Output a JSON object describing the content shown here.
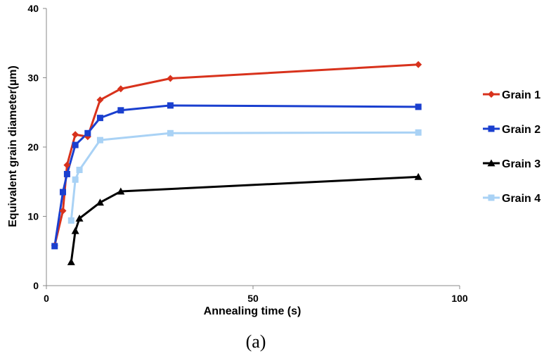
{
  "chart_data": {
    "type": "line",
    "xlabel": "Annealing time (s)",
    "ylabel": "Equivalent grain diameter(µm)",
    "xlim": [
      0,
      100
    ],
    "ylim": [
      0,
      40
    ],
    "x_ticks": [
      "0",
      "50",
      "100"
    ],
    "y_ticks": [
      "0",
      "10",
      "20",
      "30",
      "40"
    ],
    "grid": false,
    "legend_position": "right",
    "caption": "(a)",
    "series": [
      {
        "name": "Grain 1",
        "color": "#d8321c",
        "marker": "diamond",
        "x": [
          2,
          4,
          5,
          7,
          10,
          13,
          18,
          30,
          90
        ],
        "y": [
          5.8,
          10.8,
          17.4,
          21.8,
          21.5,
          26.8,
          28.4,
          29.9,
          31.9
        ]
      },
      {
        "name": "Grain 2",
        "color": "#1a3fcf",
        "marker": "square",
        "x": [
          2,
          4,
          5,
          7,
          10,
          13,
          18,
          30,
          90
        ],
        "y": [
          5.7,
          13.5,
          16.1,
          20.3,
          22.0,
          24.2,
          25.3,
          26.0,
          25.8
        ]
      },
      {
        "name": "Grain 3",
        "color": "#000000",
        "marker": "triangle",
        "x": [
          6,
          7,
          8,
          13,
          18,
          90
        ],
        "y": [
          3.4,
          7.9,
          9.7,
          12.0,
          13.6,
          15.7
        ]
      },
      {
        "name": "Grain 4",
        "color": "#a9d2f5",
        "marker": "square",
        "x": [
          6,
          7,
          8,
          13,
          30,
          90
        ],
        "y": [
          9.4,
          15.3,
          16.7,
          21.0,
          22.0,
          22.1
        ]
      }
    ]
  }
}
